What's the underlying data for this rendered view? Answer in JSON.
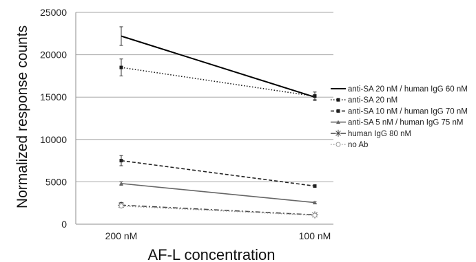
{
  "chart_data": {
    "type": "line",
    "title": "",
    "xlabel": "AF-L concentration",
    "ylabel": "Normalized response counts",
    "categories": [
      "200 nM",
      "100 nM"
    ],
    "ylim": [
      0,
      25000
    ],
    "yticks": [
      0,
      5000,
      10000,
      15000,
      20000,
      25000
    ],
    "grid": true,
    "legend_position": "right",
    "series": [
      {
        "name": "anti-SA 20 nM / human IgG 60 nM",
        "values": [
          22200,
          15000
        ],
        "errors": [
          1100,
          300
        ],
        "color": "#000000",
        "dash": "solid",
        "marker": "none"
      },
      {
        "name": "anti-SA 20 nM",
        "values": [
          18500,
          15100
        ],
        "errors": [
          1000,
          500
        ],
        "color": "#1a1a1a",
        "dash": "dotted",
        "marker": "square"
      },
      {
        "name": "anti-SA 10 nM / human IgG 70 nM",
        "values": [
          7500,
          4500
        ],
        "errors": [
          600,
          100
        ],
        "color": "#222222",
        "dash": "dashed",
        "marker": "square"
      },
      {
        "name": "anti-SA 5 nM / human IgG 75 nM",
        "values": [
          4800,
          2550
        ],
        "errors": [
          200,
          80
        ],
        "color": "#666666",
        "dash": "solid",
        "marker": "triangle"
      },
      {
        "name": "human IgG 80 nM",
        "values": [
          2250,
          1100
        ],
        "errors": [
          300,
          100
        ],
        "color": "#444444",
        "dash": "dashdot",
        "marker": "asterisk"
      },
      {
        "name": "no Ab",
        "values": [
          2150,
          1050
        ],
        "errors": [
          200,
          100
        ],
        "color": "#999999",
        "dash": "dotted",
        "marker": "circle"
      }
    ]
  }
}
